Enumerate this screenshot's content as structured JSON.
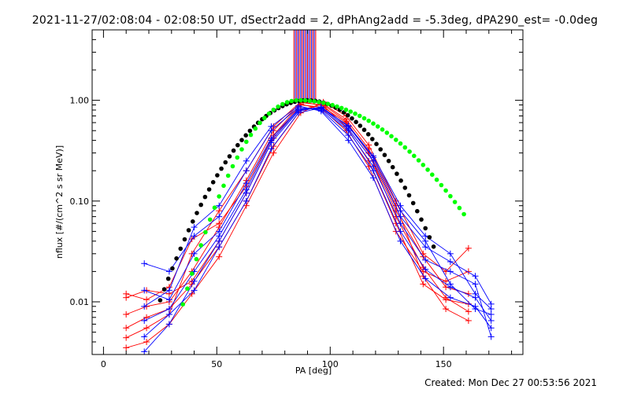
{
  "title": "2021-11-27/02:08:04 - 02:08:50 UT, dSectr2add = 2, dPhAng2add = -5.3deg, dPA290_est= -0.0deg",
  "footer": "Created: Mon Dec 27 00:53:56 2021",
  "chart_data": {
    "type": "line",
    "title": "2021-11-27/02:08:04 - 02:08:50 UT, dSectr2add = 2, dPhAng2add = -5.3deg, dPA290_est= -0.0deg",
    "xlabel": "PA [deg]",
    "ylabel": "nflux [#/(cm^2 s sr MeV)]",
    "xlim": [
      -5,
      185
    ],
    "ylim": [
      0.003,
      5.0
    ],
    "yscale": "log",
    "x_ticks": [
      0,
      50,
      100,
      150
    ],
    "x_tick_labels": [
      "0",
      "50",
      "100",
      "150"
    ],
    "y_ticks": [
      0.01,
      0.1,
      1.0
    ],
    "y_tick_labels": [
      "0.01",
      "0.10",
      "1.00"
    ],
    "colors": {
      "red": "#ff0000",
      "blue": "#0000ff",
      "black": "#000000",
      "green": "#00ff00"
    },
    "vertical_lines": {
      "x_range": [
        84,
        94
      ],
      "colors": [
        "#ff0000",
        "#0000ff"
      ]
    },
    "series": [
      {
        "color": "#ff0000",
        "x": [
          10,
          19,
          29,
          39,
          51,
          63,
          75,
          87,
          97,
          107,
          117,
          129,
          141,
          151,
          161
        ],
        "y": [
          0.011,
          0.013,
          0.012,
          0.016,
          0.04,
          0.12,
          0.42,
          0.9,
          0.85,
          0.6,
          0.3,
          0.08,
          0.028,
          0.014,
          0.012
        ]
      },
      {
        "color": "#ff0000",
        "x": [
          10,
          19,
          29,
          39,
          51,
          63,
          75,
          87,
          97,
          107,
          117,
          129,
          141,
          151,
          161
        ],
        "y": [
          0.0075,
          0.009,
          0.01,
          0.02,
          0.055,
          0.16,
          0.5,
          0.95,
          0.9,
          0.62,
          0.3,
          0.07,
          0.022,
          0.011,
          0.008
        ]
      },
      {
        "color": "#ff0000",
        "x": [
          10,
          19,
          29,
          39,
          51,
          63,
          75,
          87,
          97,
          107,
          117,
          129,
          141,
          151,
          161
        ],
        "y": [
          0.0055,
          0.007,
          0.0085,
          0.015,
          0.035,
          0.1,
          0.35,
          0.8,
          0.92,
          0.65,
          0.33,
          0.09,
          0.018,
          0.0085,
          0.0065
        ]
      },
      {
        "color": "#ff0000",
        "x": [
          10,
          19,
          29,
          39,
          51,
          63,
          75,
          87,
          97,
          107,
          117,
          129,
          141,
          151,
          161
        ],
        "y": [
          0.0044,
          0.0055,
          0.0075,
          0.03,
          0.08,
          0.2,
          0.55,
          0.97,
          0.88,
          0.55,
          0.25,
          0.06,
          0.015,
          0.0105,
          0.0095
        ]
      },
      {
        "color": "#ff0000",
        "x": [
          10,
          19,
          29,
          39,
          51,
          63,
          75,
          87,
          97,
          107,
          117,
          129,
          141,
          151,
          161
        ],
        "y": [
          0.0035,
          0.004,
          0.006,
          0.012,
          0.028,
          0.09,
          0.3,
          0.75,
          0.96,
          0.7,
          0.36,
          0.1,
          0.03,
          0.02,
          0.034
        ]
      },
      {
        "color": "#ff0000",
        "x": [
          10,
          19,
          29,
          39,
          51,
          63,
          75,
          87,
          97,
          107,
          117,
          129,
          141,
          151,
          161
        ],
        "y": [
          0.012,
          0.0105,
          0.014,
          0.042,
          0.06,
          0.14,
          0.45,
          0.92,
          0.8,
          0.5,
          0.22,
          0.05,
          0.02,
          0.016,
          0.02
        ]
      },
      {
        "color": "#0000ff",
        "x": [
          18,
          29,
          40,
          51,
          63,
          74,
          86,
          96,
          108,
          119,
          131,
          142,
          153,
          164,
          171
        ],
        "y": [
          0.024,
          0.02,
          0.045,
          0.07,
          0.2,
          0.5,
          0.85,
          0.8,
          0.45,
          0.2,
          0.05,
          0.021,
          0.014,
          0.011,
          0.0065
        ]
      },
      {
        "color": "#0000ff",
        "x": [
          18,
          29,
          40,
          51,
          63,
          74,
          86,
          96,
          108,
          119,
          131,
          142,
          153,
          164,
          171
        ],
        "y": [
          0.009,
          0.013,
          0.055,
          0.09,
          0.25,
          0.55,
          0.88,
          0.78,
          0.4,
          0.17,
          0.04,
          0.017,
          0.011,
          0.009,
          0.0055
        ]
      },
      {
        "color": "#0000ff",
        "x": [
          18,
          29,
          40,
          51,
          63,
          74,
          86,
          96,
          108,
          119,
          131,
          142,
          153,
          164,
          171
        ],
        "y": [
          0.013,
          0.0105,
          0.03,
          0.05,
          0.15,
          0.42,
          0.82,
          0.82,
          0.5,
          0.22,
          0.06,
          0.026,
          0.02,
          0.015,
          0.0045
        ]
      },
      {
        "color": "#0000ff",
        "x": [
          18,
          29,
          40,
          51,
          63,
          74,
          86,
          96,
          108,
          119,
          131,
          142,
          153,
          164,
          171
        ],
        "y": [
          0.0065,
          0.0085,
          0.02,
          0.045,
          0.13,
          0.4,
          0.8,
          0.85,
          0.52,
          0.25,
          0.07,
          0.035,
          0.025,
          0.018,
          0.0095
        ]
      },
      {
        "color": "#0000ff",
        "x": [
          18,
          29,
          40,
          51,
          63,
          74,
          86,
          96,
          108,
          119,
          131,
          142,
          153,
          164,
          171
        ],
        "y": [
          0.0032,
          0.006,
          0.016,
          0.04,
          0.12,
          0.38,
          0.78,
          0.86,
          0.55,
          0.27,
          0.08,
          0.04,
          0.015,
          0.0085,
          0.0075
        ]
      },
      {
        "color": "#0000ff",
        "x": [
          18,
          29,
          40,
          51,
          63,
          74,
          86,
          96,
          108,
          119,
          131,
          142,
          153,
          164,
          171
        ],
        "y": [
          0.0045,
          0.0075,
          0.013,
          0.035,
          0.1,
          0.33,
          0.75,
          0.84,
          0.56,
          0.28,
          0.09,
          0.045,
          0.03,
          0.012,
          0.0085
        ]
      }
    ],
    "fit_black": {
      "color": "#000000",
      "x_range": [
        25,
        147
      ],
      "peak_x": 90,
      "peak_y": 1.0,
      "sigma_deg": 21.5,
      "point_step_deg": 1.8
    },
    "fit_green": {
      "color": "#00ff00",
      "x_range": [
        35,
        160
      ],
      "peak_x": 86,
      "peak_y": 1.0,
      "left_sigma_deg": 16.7,
      "right_sigma_deg": 32,
      "point_step_deg": 2.0
    }
  }
}
